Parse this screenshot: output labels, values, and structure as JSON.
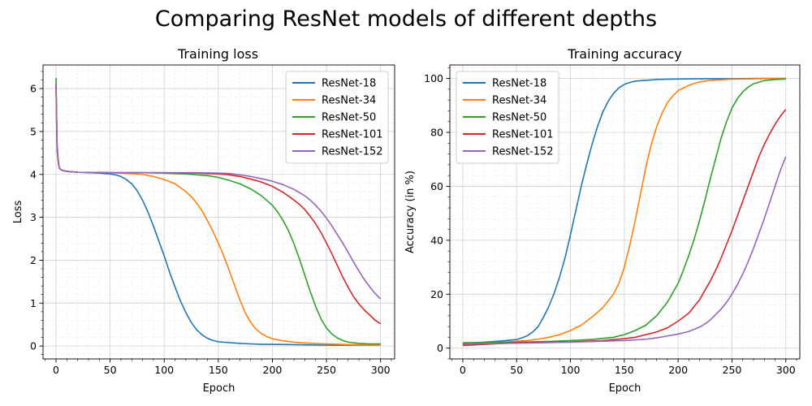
{
  "suptitle": "Comparing ResNet models of different depths",
  "chart_data": [
    {
      "type": "line",
      "title": "Training loss",
      "xlabel": "Epoch",
      "ylabel": "Loss",
      "xlim": [
        -12,
        313
      ],
      "ylim": [
        -0.3,
        6.55
      ],
      "xticks": [
        0,
        50,
        100,
        150,
        200,
        250,
        300
      ],
      "yticks": [
        0,
        1,
        2,
        3,
        4,
        5,
        6
      ],
      "grid": true,
      "legend_position": "upper-right",
      "series": [
        {
          "name": "ResNet-18",
          "color": "#1f77b4",
          "x": [
            0,
            1,
            2,
            3,
            5,
            10,
            20,
            30,
            40,
            50,
            55,
            60,
            65,
            70,
            75,
            80,
            85,
            90,
            95,
            100,
            105,
            110,
            115,
            120,
            125,
            130,
            135,
            140,
            145,
            150,
            160,
            170,
            180,
            190,
            200,
            225,
            250,
            275,
            300
          ],
          "y": [
            6.1,
            4.6,
            4.3,
            4.15,
            4.1,
            4.07,
            4.05,
            4.04,
            4.03,
            4.01,
            3.99,
            3.95,
            3.88,
            3.78,
            3.62,
            3.4,
            3.12,
            2.8,
            2.45,
            2.1,
            1.72,
            1.38,
            1.05,
            0.78,
            0.55,
            0.38,
            0.26,
            0.18,
            0.13,
            0.1,
            0.08,
            0.06,
            0.05,
            0.04,
            0.04,
            0.03,
            0.02,
            0.02,
            0.02
          ]
        },
        {
          "name": "ResNet-34",
          "color": "#ff7f0e",
          "x": [
            0,
            1,
            2,
            3,
            5,
            10,
            20,
            40,
            60,
            80,
            90,
            100,
            110,
            120,
            125,
            130,
            135,
            140,
            145,
            150,
            155,
            160,
            165,
            170,
            175,
            180,
            185,
            190,
            195,
            200,
            210,
            220,
            230,
            250,
            275,
            300
          ],
          "y": [
            6.0,
            4.6,
            4.3,
            4.15,
            4.1,
            4.07,
            4.05,
            4.04,
            4.03,
            4.0,
            3.95,
            3.88,
            3.78,
            3.6,
            3.48,
            3.33,
            3.15,
            2.92,
            2.68,
            2.4,
            2.1,
            1.77,
            1.42,
            1.07,
            0.77,
            0.55,
            0.39,
            0.29,
            0.22,
            0.17,
            0.12,
            0.09,
            0.07,
            0.05,
            0.03,
            0.02
          ]
        },
        {
          "name": "ResNet-50",
          "color": "#2ca02c",
          "x": [
            0,
            1,
            2,
            3,
            5,
            10,
            20,
            50,
            80,
            100,
            120,
            140,
            150,
            160,
            170,
            180,
            190,
            200,
            205,
            210,
            215,
            220,
            225,
            230,
            235,
            240,
            245,
            250,
            255,
            260,
            265,
            270,
            280,
            290,
            300
          ],
          "y": [
            6.25,
            4.7,
            4.35,
            4.15,
            4.1,
            4.07,
            4.05,
            4.04,
            4.04,
            4.03,
            4.01,
            3.97,
            3.93,
            3.86,
            3.78,
            3.66,
            3.5,
            3.28,
            3.12,
            2.92,
            2.68,
            2.38,
            2.03,
            1.65,
            1.27,
            0.92,
            0.63,
            0.42,
            0.28,
            0.19,
            0.13,
            0.09,
            0.06,
            0.05,
            0.05
          ]
        },
        {
          "name": "ResNet-101",
          "color": "#d62728",
          "x": [
            0,
            1,
            2,
            3,
            5,
            10,
            20,
            50,
            80,
            100,
            130,
            150,
            160,
            170,
            180,
            190,
            200,
            210,
            220,
            225,
            230,
            235,
            240,
            245,
            250,
            255,
            260,
            265,
            270,
            275,
            280,
            285,
            290,
            295,
            300
          ],
          "y": [
            6.1,
            4.6,
            4.3,
            4.15,
            4.1,
            4.07,
            4.05,
            4.04,
            4.04,
            4.04,
            4.03,
            4.01,
            3.99,
            3.95,
            3.89,
            3.82,
            3.72,
            3.58,
            3.4,
            3.3,
            3.18,
            3.02,
            2.85,
            2.64,
            2.4,
            2.15,
            1.88,
            1.61,
            1.37,
            1.15,
            0.98,
            0.84,
            0.72,
            0.6,
            0.52
          ]
        },
        {
          "name": "ResNet-152",
          "color": "#9467bd",
          "x": [
            0,
            1,
            2,
            3,
            5,
            10,
            20,
            50,
            80,
            100,
            130,
            150,
            160,
            170,
            180,
            190,
            200,
            210,
            220,
            230,
            235,
            240,
            245,
            250,
            255,
            260,
            265,
            270,
            275,
            280,
            285,
            290,
            295,
            300
          ],
          "y": [
            6.1,
            4.6,
            4.3,
            4.15,
            4.1,
            4.07,
            4.05,
            4.04,
            4.04,
            4.04,
            4.04,
            4.03,
            4.02,
            3.99,
            3.95,
            3.9,
            3.84,
            3.76,
            3.65,
            3.5,
            3.4,
            3.28,
            3.14,
            2.98,
            2.8,
            2.6,
            2.4,
            2.18,
            1.96,
            1.75,
            1.55,
            1.38,
            1.22,
            1.1
          ]
        }
      ]
    },
    {
      "type": "line",
      "title": "Training accuracy",
      "xlabel": "Epoch",
      "ylabel": "Accuracy (in %)",
      "xlim": [
        -12,
        313
      ],
      "ylim": [
        -4,
        105
      ],
      "xticks": [
        0,
        50,
        100,
        150,
        200,
        250,
        300
      ],
      "yticks": [
        0,
        20,
        40,
        60,
        80,
        100
      ],
      "grid": true,
      "legend_position": "upper-left",
      "series": [
        {
          "name": "ResNet-18",
          "color": "#1f77b4",
          "x": [
            0,
            10,
            20,
            30,
            40,
            50,
            55,
            60,
            65,
            70,
            75,
            80,
            85,
            90,
            95,
            100,
            105,
            110,
            115,
            120,
            125,
            130,
            135,
            140,
            145,
            150,
            155,
            160,
            170,
            180,
            190,
            200,
            225,
            250,
            275,
            300
          ],
          "y": [
            1.5,
            2.0,
            2.2,
            2.5,
            2.8,
            3.2,
            3.8,
            4.6,
            6.0,
            8.0,
            11.5,
            15.5,
            20.5,
            26.5,
            33.5,
            42.0,
            51.0,
            60.0,
            68.0,
            75.5,
            82.0,
            87.5,
            91.5,
            94.5,
            96.5,
            97.8,
            98.5,
            99.0,
            99.3,
            99.6,
            99.7,
            99.8,
            99.9,
            99.9,
            100.0,
            100.0
          ]
        },
        {
          "name": "ResNet-34",
          "color": "#ff7f0e",
          "x": [
            0,
            20,
            40,
            60,
            70,
            80,
            90,
            100,
            110,
            120,
            130,
            140,
            145,
            150,
            155,
            160,
            165,
            170,
            175,
            180,
            185,
            190,
            195,
            200,
            210,
            220,
            230,
            250,
            275,
            300
          ],
          "y": [
            1.5,
            2.0,
            2.3,
            2.8,
            3.3,
            4.0,
            5.0,
            6.5,
            8.5,
            11.5,
            15.0,
            20.0,
            24.0,
            30.0,
            38.0,
            47.0,
            57.0,
            67.0,
            75.5,
            82.0,
            87.0,
            91.0,
            93.5,
            95.5,
            97.5,
            98.7,
            99.3,
            99.7,
            99.9,
            100.0
          ]
        },
        {
          "name": "ResNet-50",
          "color": "#2ca02c",
          "x": [
            0,
            20,
            50,
            80,
            100,
            120,
            140,
            150,
            160,
            170,
            180,
            190,
            200,
            205,
            210,
            215,
            220,
            225,
            230,
            235,
            240,
            245,
            250,
            255,
            260,
            265,
            270,
            280,
            290,
            300
          ],
          "y": [
            2.0,
            2.0,
            2.2,
            2.5,
            2.8,
            3.2,
            4.0,
            5.0,
            6.5,
            8.5,
            12.0,
            17.0,
            24.0,
            29.0,
            34.5,
            40.5,
            47.5,
            55.0,
            63.0,
            70.5,
            78.0,
            84.0,
            89.0,
            92.5,
            95.0,
            96.8,
            98.0,
            99.2,
            99.6,
            99.8
          ]
        },
        {
          "name": "ResNet-101",
          "color": "#d62728",
          "x": [
            0,
            50,
            100,
            130,
            150,
            160,
            170,
            180,
            190,
            200,
            210,
            215,
            220,
            225,
            230,
            235,
            240,
            245,
            250,
            255,
            260,
            265,
            270,
            275,
            280,
            285,
            290,
            295,
            300
          ],
          "y": [
            1.0,
            2.0,
            2.3,
            2.8,
            3.5,
            4.0,
            5.0,
            6.0,
            7.5,
            10.0,
            13.0,
            15.5,
            18.0,
            21.5,
            25.0,
            29.0,
            33.5,
            38.5,
            43.5,
            49.0,
            54.5,
            60.0,
            65.5,
            71.0,
            75.5,
            79.5,
            83.0,
            86.0,
            88.5
          ]
        },
        {
          "name": "ResNet-152",
          "color": "#9467bd",
          "x": [
            0,
            50,
            100,
            150,
            170,
            180,
            190,
            200,
            210,
            220,
            225,
            230,
            235,
            240,
            245,
            250,
            255,
            260,
            265,
            270,
            275,
            280,
            285,
            290,
            295,
            300
          ],
          "y": [
            1.5,
            1.8,
            2.2,
            2.8,
            3.3,
            3.8,
            4.5,
            5.2,
            6.2,
            7.8,
            9.0,
            10.5,
            12.5,
            14.5,
            17.0,
            20.0,
            23.5,
            27.5,
            32.0,
            37.0,
            42.5,
            48.0,
            54.0,
            60.0,
            66.0,
            71.0
          ]
        }
      ]
    }
  ]
}
